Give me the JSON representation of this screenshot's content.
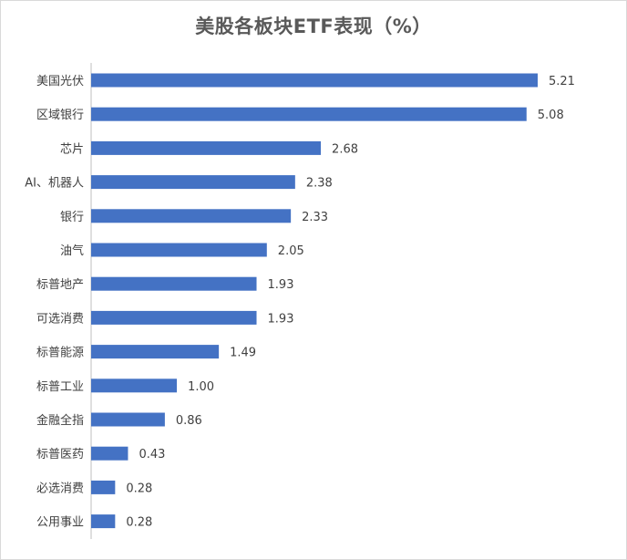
{
  "chart_data": {
    "type": "bar",
    "orientation": "horizontal",
    "title": "美股各板块ETF表现（%）",
    "xlabel": "",
    "ylabel": "",
    "categories": [
      "美国光伏",
      "区域银行",
      "芯片",
      "AI、机器人",
      "银行",
      "油气",
      "标普地产",
      "可选消费",
      "标普能源",
      "标普工业",
      "金融全指",
      "标普医药",
      "必选消费",
      "公用事业"
    ],
    "values": [
      5.21,
      5.08,
      2.68,
      2.38,
      2.33,
      2.05,
      1.93,
      1.93,
      1.49,
      1.0,
      0.86,
      0.43,
      0.28,
      0.28
    ],
    "value_labels": [
      "5.21",
      "5.08",
      "2.68",
      "2.38",
      "2.33",
      "2.05",
      "1.93",
      "1.93",
      "1.49",
      "1.00",
      "0.86",
      "0.43",
      "0.28",
      "0.28"
    ],
    "xlim": [
      0,
      5.21
    ],
    "grid": false,
    "legend": "none",
    "bar_color": "#4472C4"
  }
}
